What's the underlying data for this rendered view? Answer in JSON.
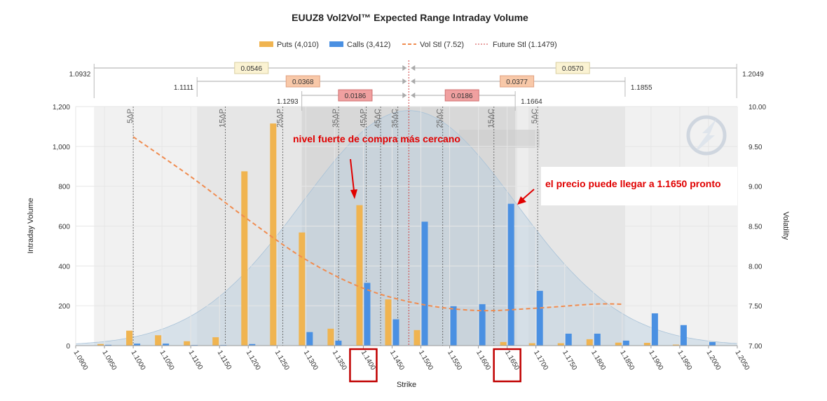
{
  "chart_data": {
    "type": "bar",
    "title": "EUUZ8 Vol2Vol™ Expected Range Intraday Volume",
    "xlabel": "Strike",
    "ylabel": "Intraday Volume",
    "y2label": "Volatility",
    "xlim": [
      1.09,
      1.205
    ],
    "ylim": [
      0,
      1200
    ],
    "y2lim": [
      7.0,
      10.0
    ],
    "x_ticks": [
      "1.0900",
      "1.0950",
      "1.1000",
      "1.1050",
      "1.1100",
      "1.1150",
      "1.1200",
      "1.1250",
      "1.1300",
      "1.1350",
      "1.1400",
      "1.1450",
      "1.1500",
      "1.1550",
      "1.1600",
      "1.1650",
      "1.1700",
      "1.1750",
      "1.1800",
      "1.1850",
      "1.1900",
      "1.1950",
      "1.2000",
      "1.2050"
    ],
    "y_ticks": [
      "0",
      "200",
      "400",
      "600",
      "800",
      "1,000",
      "1,200"
    ],
    "y2_ticks": [
      "7.00",
      "7.50",
      "8.00",
      "8.50",
      "9.00",
      "9.50",
      "10.00"
    ],
    "legend": [
      {
        "label": "Puts (4,010)",
        "color": "#f0b450",
        "kind": "bar"
      },
      {
        "label": "Calls (3,412)",
        "color": "#4a90e2",
        "kind": "bar"
      },
      {
        "label": "Vol Stl (7.52)",
        "color": "#f08c50",
        "kind": "dashed"
      },
      {
        "label": "Future Stl (1.1479)",
        "color": "#d04040",
        "kind": "dotted"
      }
    ],
    "strikes": [
      1.095,
      1.1,
      1.105,
      1.11,
      1.115,
      1.12,
      1.125,
      1.13,
      1.135,
      1.14,
      1.145,
      1.15,
      1.155,
      1.16,
      1.165,
      1.17,
      1.175,
      1.18,
      1.185,
      1.19,
      1.195,
      1.2
    ],
    "series": [
      {
        "name": "Puts",
        "values": [
          8,
          75,
          52,
          22,
          42,
          875,
          1115,
          568,
          85,
          705,
          232,
          78,
          0,
          0,
          18,
          12,
          12,
          32,
          15,
          14,
          5,
          0
        ]
      },
      {
        "name": "Calls",
        "values": [
          4,
          10,
          10,
          3,
          3,
          8,
          0,
          68,
          25,
          315,
          132,
          622,
          198,
          208,
          712,
          275,
          60,
          60,
          25,
          162,
          103,
          18
        ]
      }
    ],
    "vol_curve": {
      "name": "Vol Stl",
      "x": [
        1.1,
        1.11,
        1.12,
        1.13,
        1.14,
        1.15,
        1.16,
        1.17,
        1.18,
        1.185
      ],
      "y": [
        9.62,
        9.12,
        8.58,
        8.08,
        7.72,
        7.52,
        7.44,
        7.47,
        7.52,
        7.52
      ]
    },
    "future_settle": 1.1479,
    "delta_lines": [
      {
        "x": 1.1,
        "label": "5ΔP"
      },
      {
        "x": 1.116,
        "label": "15ΔP"
      },
      {
        "x": 1.126,
        "label": "25ΔP"
      },
      {
        "x": 1.1357,
        "label": "35ΔP"
      },
      {
        "x": 1.1405,
        "label": "45ΔP"
      },
      {
        "x": 1.143,
        "label": "45ΔC"
      },
      {
        "x": 1.146,
        "label": "35ΔC"
      },
      {
        "x": 1.1538,
        "label": "25ΔC"
      },
      {
        "x": 1.1627,
        "label": "15ΔC"
      },
      {
        "x": 1.1703,
        "label": "5ΔC"
      }
    ],
    "ranges": [
      {
        "left_label": "1.0932",
        "right_label": "1.2049",
        "left_width": "0.0546",
        "right_width": "0.0570",
        "lo": 1.0932,
        "hi": 1.2049,
        "row": 0
      },
      {
        "left_label": "1.1111",
        "right_label": "1.1855",
        "left_width": "0.0368",
        "right_width": "0.0377",
        "lo": 1.1111,
        "hi": 1.1855,
        "row": 1
      },
      {
        "left_label": "1.1293",
        "right_label": "1.1664",
        "left_width": "0.0186",
        "right_width": "0.0186",
        "lo": 1.1293,
        "hi": 1.1664,
        "row": 2
      }
    ],
    "annotations": [
      {
        "text": "nivel fuerte de compra más cercano",
        "target_strike": 1.14
      },
      {
        "text": "el precio puede llegar a 1.1650 pronto",
        "target_strike": 1.165
      }
    ],
    "highlighted_strikes": [
      "1.1400",
      "1.1650"
    ]
  }
}
